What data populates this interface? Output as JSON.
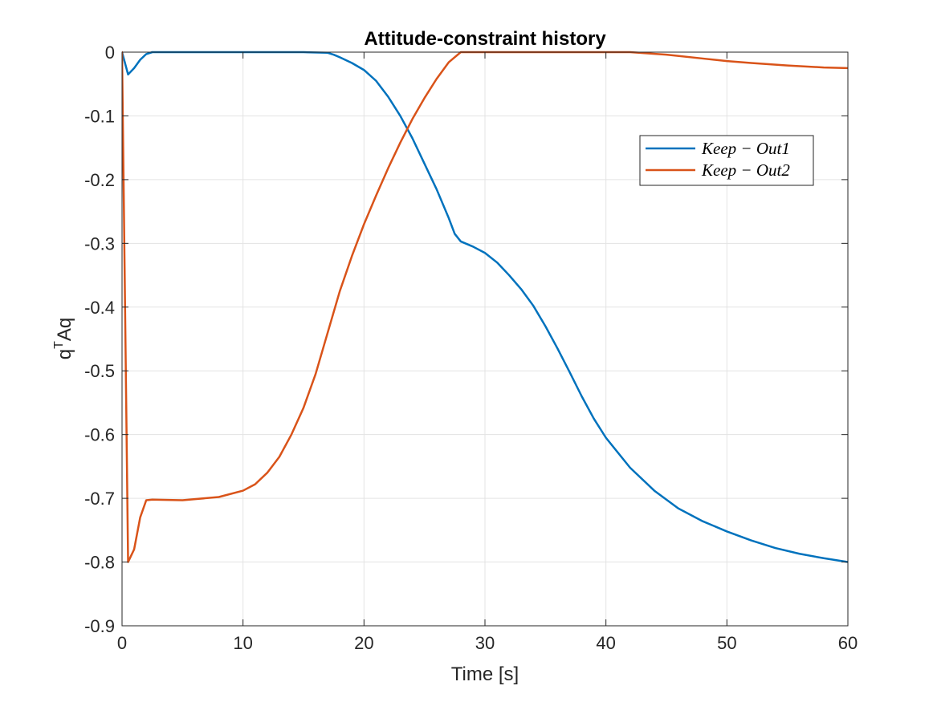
{
  "chart_data": {
    "type": "line",
    "title": "Attitude-constraint history",
    "xlabel": "Time [s]",
    "ylabel_base": "q",
    "ylabel_sup": "T",
    "ylabel_tail": "Aq",
    "xlim": [
      0,
      60
    ],
    "ylim": [
      -0.9,
      0
    ],
    "xticks": [
      0,
      10,
      20,
      30,
      40,
      50,
      60
    ],
    "xtick_labels": [
      "0",
      "10",
      "20",
      "30",
      "40",
      "50",
      "60"
    ],
    "yticks": [
      0,
      -0.1,
      -0.2,
      -0.3,
      -0.4,
      -0.5,
      -0.6,
      -0.7,
      -0.8,
      -0.9
    ],
    "ytick_labels": [
      "0",
      "-0.1",
      "-0.2",
      "-0.3",
      "-0.4",
      "-0.5",
      "-0.6",
      "-0.7",
      "-0.8",
      "-0.9"
    ],
    "grid": true,
    "legend_position": "upper-right",
    "series": [
      {
        "name": "Keep − Out1",
        "color": "#0072BD",
        "x": [
          0,
          0.5,
          1,
          1.5,
          2,
          2.5,
          5,
          10,
          15,
          17,
          17.5,
          18,
          19,
          20,
          21,
          22,
          23,
          24,
          25,
          26,
          27,
          27.5,
          28,
          29,
          30,
          31,
          32,
          33,
          34,
          35,
          36,
          37,
          38,
          39,
          40,
          42,
          44,
          46,
          48,
          50,
          52,
          54,
          56,
          58,
          60
        ],
        "y": [
          0,
          -0.035,
          -0.025,
          -0.012,
          -0.003,
          0,
          0,
          0,
          0,
          -0.001,
          -0.004,
          -0.008,
          -0.017,
          -0.028,
          -0.045,
          -0.07,
          -0.1,
          -0.135,
          -0.175,
          -0.215,
          -0.26,
          -0.285,
          -0.297,
          -0.305,
          -0.315,
          -0.33,
          -0.35,
          -0.372,
          -0.398,
          -0.43,
          -0.465,
          -0.502,
          -0.54,
          -0.575,
          -0.605,
          -0.652,
          -0.688,
          -0.716,
          -0.736,
          -0.752,
          -0.766,
          -0.778,
          -0.787,
          -0.794,
          -0.8
        ]
      },
      {
        "name": "Keep − Out2",
        "color": "#D95319",
        "x": [
          0,
          0.5,
          1,
          1.5,
          2,
          2.5,
          5,
          8,
          10,
          11,
          12,
          13,
          14,
          15,
          16,
          17,
          18,
          19,
          20,
          21,
          22,
          23,
          24,
          25,
          26,
          27,
          28,
          30,
          35,
          40,
          42,
          45,
          48,
          50,
          52,
          55,
          58,
          60
        ],
        "y": [
          0,
          -0.8,
          -0.78,
          -0.73,
          -0.703,
          -0.702,
          -0.703,
          -0.698,
          -0.688,
          -0.678,
          -0.66,
          -0.635,
          -0.6,
          -0.558,
          -0.505,
          -0.44,
          -0.375,
          -0.32,
          -0.27,
          -0.225,
          -0.182,
          -0.142,
          -0.105,
          -0.072,
          -0.042,
          -0.016,
          0,
          0,
          0,
          0,
          0,
          -0.004,
          -0.01,
          -0.014,
          -0.017,
          -0.021,
          -0.024,
          -0.025
        ]
      }
    ]
  }
}
